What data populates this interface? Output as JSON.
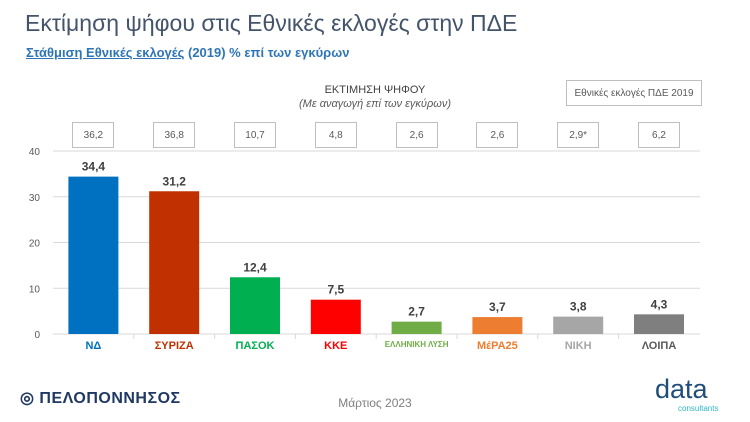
{
  "header": {
    "title": "Εκτίμηση ψήφου στις Εθνικές εκλογές στην ΠΔΕ",
    "subtitle_link": "Στάθμιση Εθνικές εκλογές",
    "subtitle_rest": " (2019) % επί των εγκύρων"
  },
  "legend_box": "Εθνικές εκλογές ΠΔΕ 2019",
  "chart_data": {
    "type": "bar",
    "title": "ΕΚΤΙΜΗΣΗ ΨΗΦΟΥ",
    "subtitle": "(Με αναγωγή επί των εγκύρων)",
    "categories": [
      "ΝΔ",
      "ΣΥΡΙΖΑ",
      "ΠΑΣΟΚ",
      "ΚΚΕ",
      "ΕΛΛΗΝΙΚΗ ΛΥΣΗ",
      "ΜέΡΑ25",
      "ΝΙΚΗ",
      "ΛΟΙΠΑ"
    ],
    "values": [
      34.4,
      31.2,
      12.4,
      7.5,
      2.7,
      3.7,
      3.8,
      4.3
    ],
    "value_labels": [
      "34,4",
      "31,2",
      "12,4",
      "7,5",
      "2,7",
      "3,7",
      "3,8",
      "4,3"
    ],
    "elections_2019": [
      "36,2",
      "36,8",
      "10,7",
      "4,8",
      "2,6",
      "2,6",
      "2,9*",
      "6,2"
    ],
    "colors": [
      "#0070c0",
      "#c03000",
      "#00b050",
      "#ff0000",
      "#70ad47",
      "#ed7d31",
      "#a6a6a6",
      "#7f7f7f"
    ],
    "ylim": [
      0,
      40
    ],
    "yticks": [
      0,
      10,
      20,
      30,
      40
    ],
    "grid": true
  },
  "logos": [
    "ΝΔ",
    "ΣΥΡΙΖΑ",
    "ΠΑΣΟΚ",
    "ΚΚΕ",
    "ΕΛΛΗΝΙΚΗ ΛΥΣΗ",
    "ΜέΡΑ25",
    "ΝΙΚΗ",
    "ΛΟΙΠΑ"
  ],
  "footer": {
    "left": "ΠΕΛΟΠΟΝΝΗΣΟΣ",
    "date": "Μάρτιος 2023",
    "brand": "data",
    "brand_sub": "consultants"
  }
}
